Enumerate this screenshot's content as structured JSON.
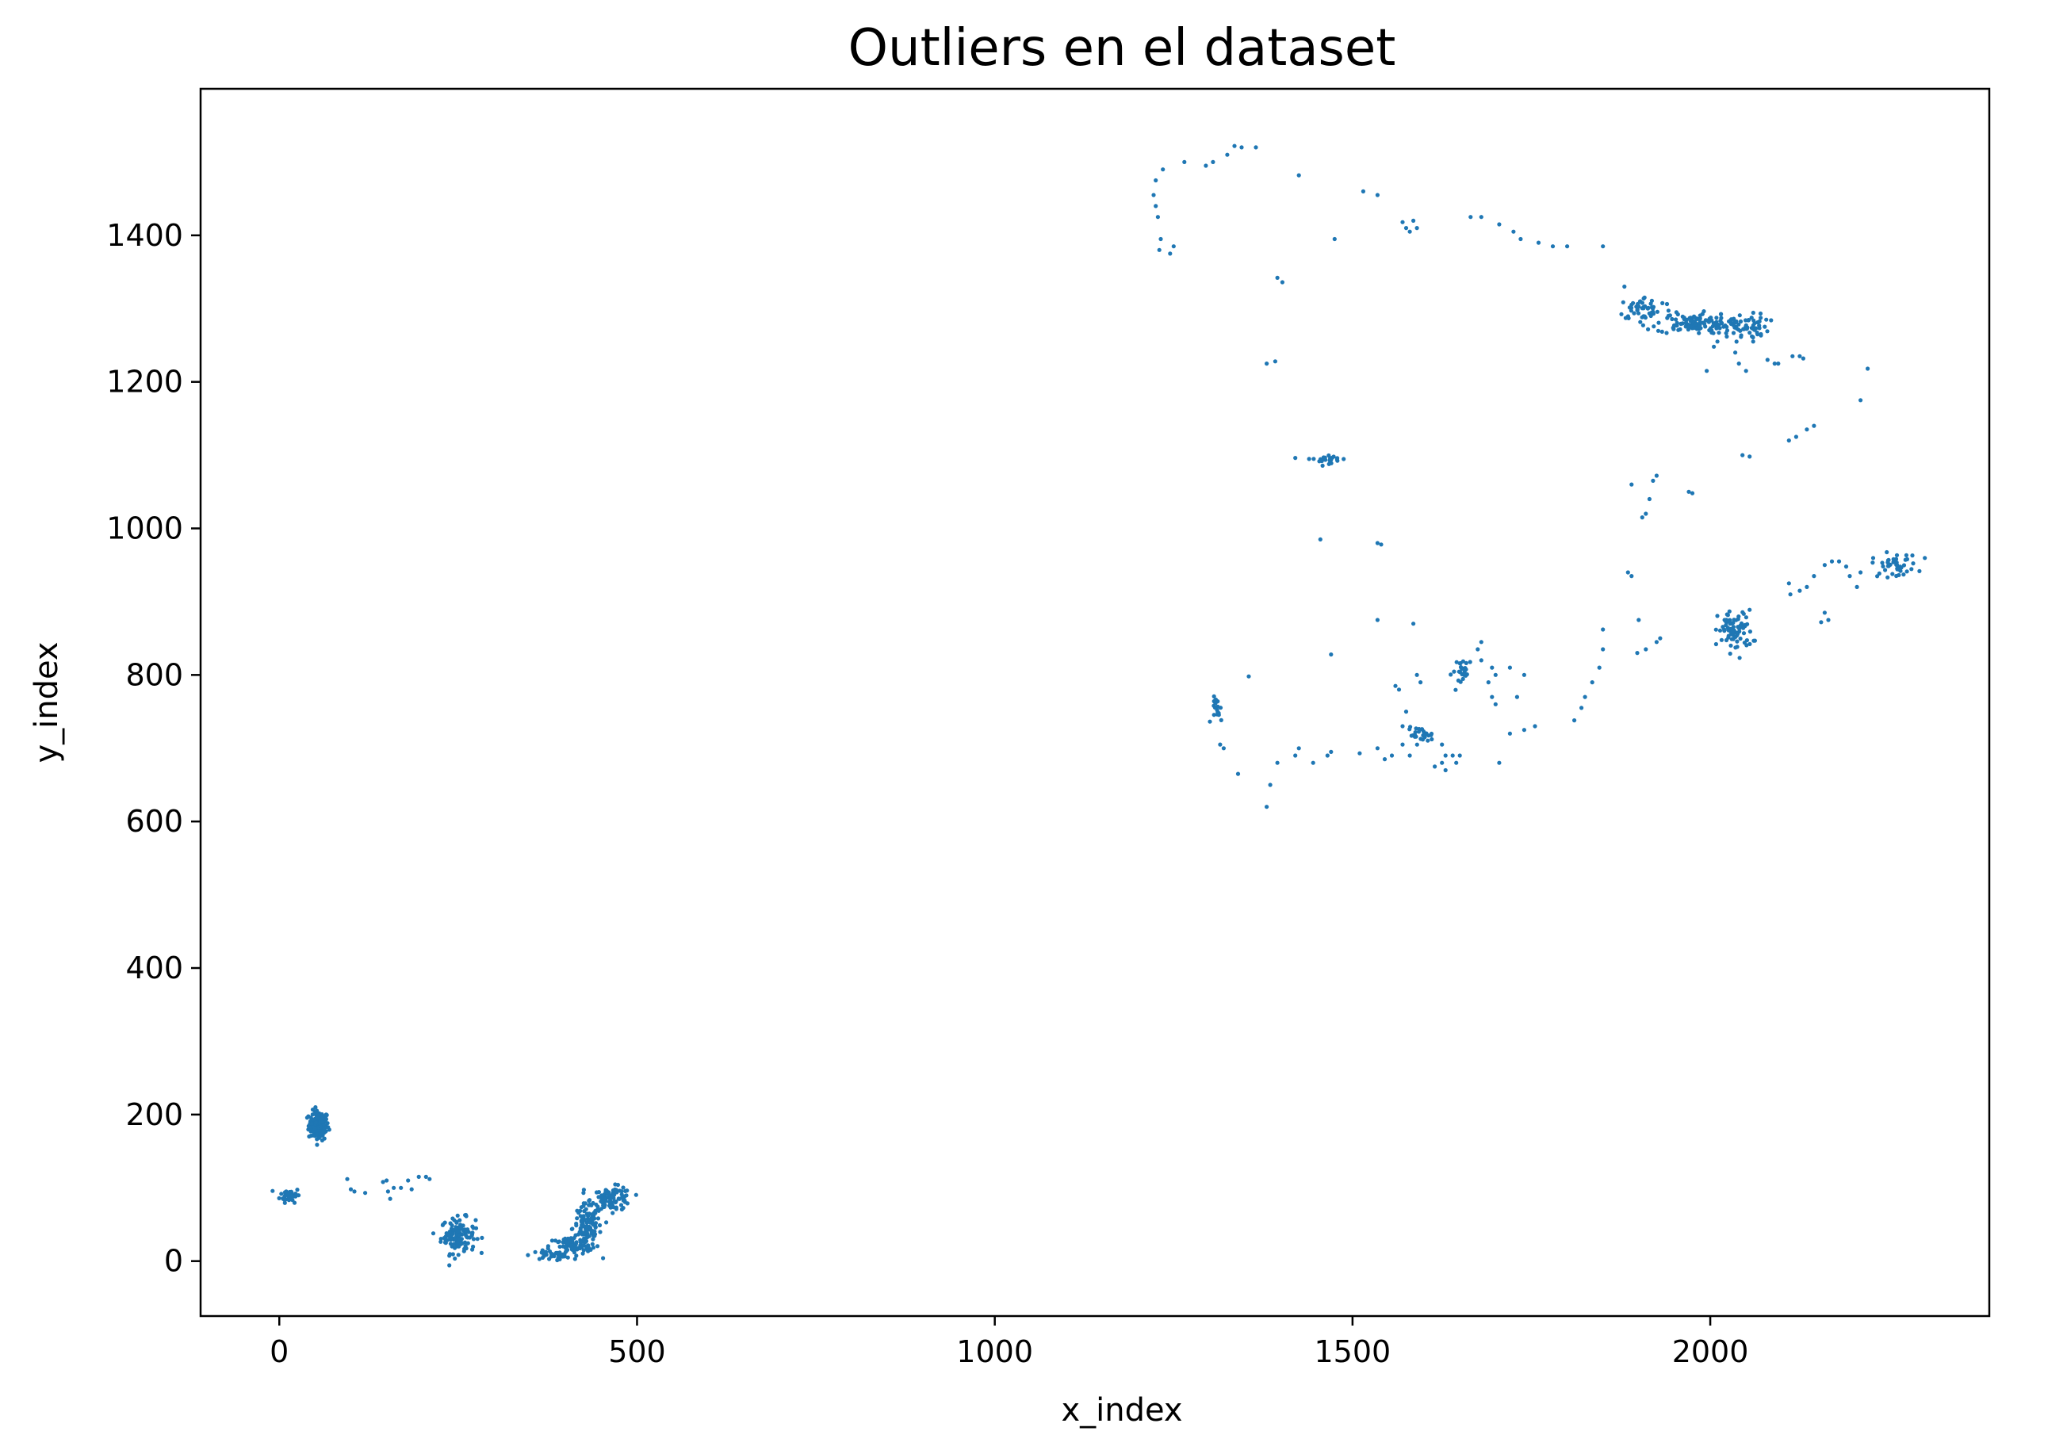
{
  "chart_data": {
    "type": "scatter",
    "title": "Outliers en el dataset",
    "xlabel": "x_index",
    "ylabel": "y_index",
    "xlim": [
      -110,
      2390
    ],
    "ylim": [
      -75,
      1600
    ],
    "xticks": [
      0,
      500,
      1000,
      1500,
      2000
    ],
    "yticks": [
      0,
      200,
      400,
      600,
      800,
      1000,
      1200,
      1400
    ],
    "grid": false,
    "marker_color": "#1f77b4",
    "clusters": [
      {
        "x": 55,
        "y": 185,
        "sx": 7,
        "sy": 10,
        "n": 140
      },
      {
        "x": 15,
        "y": 90,
        "sx": 7,
        "sy": 5,
        "n": 45
      },
      {
        "x": 250,
        "y": 35,
        "sx": 12,
        "sy": 12,
        "n": 120
      },
      {
        "x": 430,
        "y": 45,
        "sx": 10,
        "sy": 16,
        "n": 120
      },
      {
        "x": 465,
        "y": 85,
        "sx": 14,
        "sy": 8,
        "n": 100
      },
      {
        "x": 380,
        "y": 8,
        "sx": 14,
        "sy": 3,
        "n": 40
      },
      {
        "x": 405,
        "y": 20,
        "sx": 14,
        "sy": 7,
        "n": 60
      },
      {
        "x": 1910,
        "y": 1300,
        "sx": 20,
        "sy": 8,
        "n": 50
      },
      {
        "x": 1975,
        "y": 1280,
        "sx": 25,
        "sy": 7,
        "n": 110
      },
      {
        "x": 2045,
        "y": 1275,
        "sx": 18,
        "sy": 9,
        "n": 70
      },
      {
        "x": 2035,
        "y": 860,
        "sx": 12,
        "sy": 14,
        "n": 80
      },
      {
        "x": 2258,
        "y": 950,
        "sx": 16,
        "sy": 8,
        "n": 45
      },
      {
        "x": 1465,
        "y": 1095,
        "sx": 15,
        "sy": 3,
        "n": 25
      },
      {
        "x": 1595,
        "y": 718,
        "sx": 9,
        "sy": 5,
        "n": 28
      },
      {
        "x": 1655,
        "y": 805,
        "sx": 8,
        "sy": 9,
        "n": 25
      },
      {
        "x": 1312,
        "y": 752,
        "sx": 4,
        "sy": 9,
        "n": 18
      }
    ],
    "points": [
      [
        95,
        112
      ],
      [
        100,
        98
      ],
      [
        105,
        95
      ],
      [
        120,
        93
      ],
      [
        150,
        110
      ],
      [
        152,
        95
      ],
      [
        155,
        85
      ],
      [
        170,
        100
      ],
      [
        180,
        110
      ],
      [
        185,
        98
      ],
      [
        195,
        115
      ],
      [
        205,
        115
      ],
      [
        210,
        112
      ],
      [
        145,
        108
      ],
      [
        160,
        100
      ],
      [
        1222,
        1455
      ],
      [
        1225,
        1440
      ],
      [
        1228,
        1425
      ],
      [
        1232,
        1395
      ],
      [
        1230,
        1380
      ],
      [
        1225,
        1475
      ],
      [
        1235,
        1490
      ],
      [
        1245,
        1375
      ],
      [
        1250,
        1385
      ],
      [
        1265,
        1500
      ],
      [
        1295,
        1495
      ],
      [
        1305,
        1500
      ],
      [
        1325,
        1510
      ],
      [
        1335,
        1522
      ],
      [
        1345,
        1520
      ],
      [
        1365,
        1520
      ],
      [
        1425,
        1482
      ],
      [
        1475,
        1395
      ],
      [
        1515,
        1460
      ],
      [
        1535,
        1455
      ],
      [
        1570,
        1418
      ],
      [
        1575,
        1410
      ],
      [
        1580,
        1405
      ],
      [
        1590,
        1410
      ],
      [
        1585,
        1420
      ],
      [
        1665,
        1425
      ],
      [
        1680,
        1425
      ],
      [
        1705,
        1415
      ],
      [
        1725,
        1405
      ],
      [
        1735,
        1395
      ],
      [
        1760,
        1390
      ],
      [
        1780,
        1385
      ],
      [
        1800,
        1385
      ],
      [
        1380,
        1225
      ],
      [
        1392,
        1228
      ],
      [
        1395,
        1342
      ],
      [
        1402,
        1336
      ],
      [
        1850,
        1385
      ],
      [
        1880,
        1330
      ],
      [
        2005,
        1248
      ],
      [
        2010,
        1255
      ],
      [
        2035,
        1240
      ],
      [
        2040,
        1225
      ],
      [
        2050,
        1215
      ],
      [
        2060,
        1255
      ],
      [
        2080,
        1230
      ],
      [
        2090,
        1225
      ],
      [
        2095,
        1225
      ],
      [
        2115,
        1235
      ],
      [
        2125,
        1235
      ],
      [
        2130,
        1232
      ],
      [
        2220,
        1218
      ],
      [
        2210,
        1175
      ],
      [
        1995,
        1215
      ],
      [
        2110,
        1120
      ],
      [
        2120,
        1125
      ],
      [
        2135,
        1135
      ],
      [
        2145,
        1140
      ],
      [
        2045,
        1100
      ],
      [
        2055,
        1098
      ],
      [
        1890,
        1060
      ],
      [
        1925,
        1072
      ],
      [
        1920,
        1065
      ],
      [
        1915,
        1040
      ],
      [
        1905,
        1015
      ],
      [
        1910,
        1020
      ],
      [
        1970,
        1050
      ],
      [
        1975,
        1048
      ],
      [
        1455,
        985
      ],
      [
        1535,
        980
      ],
      [
        1540,
        978
      ],
      [
        1885,
        940
      ],
      [
        1890,
        935
      ],
      [
        1900,
        875
      ],
      [
        1925,
        845
      ],
      [
        1930,
        850
      ],
      [
        1910,
        835
      ],
      [
        1898,
        830
      ],
      [
        1850,
        862
      ],
      [
        1850,
        835
      ],
      [
        1845,
        810
      ],
      [
        1835,
        790
      ],
      [
        1825,
        770
      ],
      [
        1820,
        755
      ],
      [
        1810,
        738
      ],
      [
        2110,
        925
      ],
      [
        2112,
        910
      ],
      [
        2125,
        915
      ],
      [
        2135,
        920
      ],
      [
        2145,
        935
      ],
      [
        2160,
        950
      ],
      [
        2170,
        955
      ],
      [
        2180,
        955
      ],
      [
        2190,
        948
      ],
      [
        2195,
        935
      ],
      [
        2210,
        940
      ],
      [
        2205,
        920
      ],
      [
        2160,
        885
      ],
      [
        2155,
        872
      ],
      [
        2165,
        875
      ],
      [
        1355,
        798
      ],
      [
        1380,
        620
      ],
      [
        1385,
        650
      ],
      [
        1340,
        665
      ],
      [
        1320,
        700
      ],
      [
        1315,
        705
      ],
      [
        1395,
        680
      ],
      [
        1420,
        690
      ],
      [
        1425,
        700
      ],
      [
        1445,
        680
      ],
      [
        1465,
        690
      ],
      [
        1470,
        695
      ],
      [
        1510,
        693
      ],
      [
        1535,
        700
      ],
      [
        1545,
        685
      ],
      [
        1555,
        690
      ],
      [
        1570,
        705
      ],
      [
        1580,
        690
      ],
      [
        1535,
        875
      ],
      [
        1585,
        870
      ],
      [
        1590,
        800
      ],
      [
        1595,
        790
      ],
      [
        1575,
        750
      ],
      [
        1570,
        730
      ],
      [
        1560,
        785
      ],
      [
        1565,
        780
      ],
      [
        1625,
        705
      ],
      [
        1630,
        690
      ],
      [
        1625,
        680
      ],
      [
        1640,
        690
      ],
      [
        1650,
        690
      ],
      [
        1615,
        675
      ],
      [
        1630,
        670
      ],
      [
        1645,
        680
      ],
      [
        1470,
        828
      ],
      [
        1675,
        835
      ],
      [
        1680,
        845
      ],
      [
        1680,
        820
      ],
      [
        1695,
        810
      ],
      [
        1700,
        800
      ],
      [
        1690,
        790
      ],
      [
        1695,
        770
      ],
      [
        1700,
        760
      ],
      [
        1720,
        810
      ],
      [
        1730,
        770
      ],
      [
        1720,
        720
      ],
      [
        1740,
        725
      ],
      [
        1755,
        730
      ],
      [
        1705,
        680
      ],
      [
        1740,
        800
      ]
    ]
  }
}
